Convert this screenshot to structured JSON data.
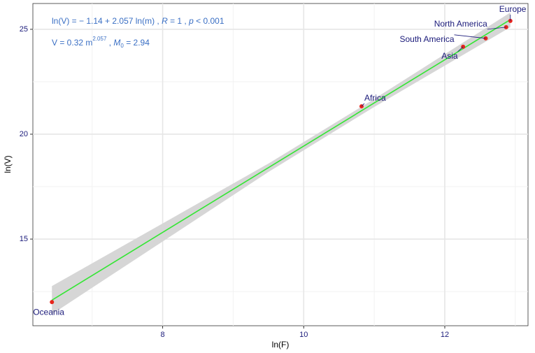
{
  "chart_data": {
    "type": "scatter",
    "x_label": "ln(F)",
    "y_label": "ln(V)",
    "xlim": [
      6.16,
      13.18
    ],
    "ylim": [
      10.87,
      26.23
    ],
    "xticks": [
      8,
      10,
      12
    ],
    "yticks": [
      15,
      20,
      25
    ],
    "grid": true,
    "labels": [
      "Oceania",
      "Africa",
      "Asia",
      "South America",
      "North America",
      "Europe"
    ],
    "x": [
      6.43,
      10.82,
      12.26,
      12.58,
      12.87,
      12.93
    ],
    "values": [
      12.0,
      21.33,
      24.17,
      24.57,
      25.1,
      25.4
    ],
    "color": "#e8241c",
    "fit": {
      "color": "#33e633",
      "x": [
        6.43,
        12.93
      ],
      "values": [
        12.09,
        25.46
      ]
    },
    "ci_band": {
      "color": "#d6d6d6",
      "x": [
        6.43,
        9.5,
        11,
        12.93
      ],
      "lower": [
        11.42,
        18.2,
        21.3,
        25.1
      ],
      "upper": [
        12.76,
        18.6,
        21.68,
        25.8
      ]
    },
    "annotations": [
      [
        "ln(V) = − 1.14 + 2.057 ln(m) ,  ",
        "R",
        " = 1 ,  ",
        "p",
        " < 0.001"
      ],
      [
        "V = 0.32 m",
        "2.057",
        " ,  ",
        "M",
        "0",
        " = 2.94"
      ]
    ]
  }
}
